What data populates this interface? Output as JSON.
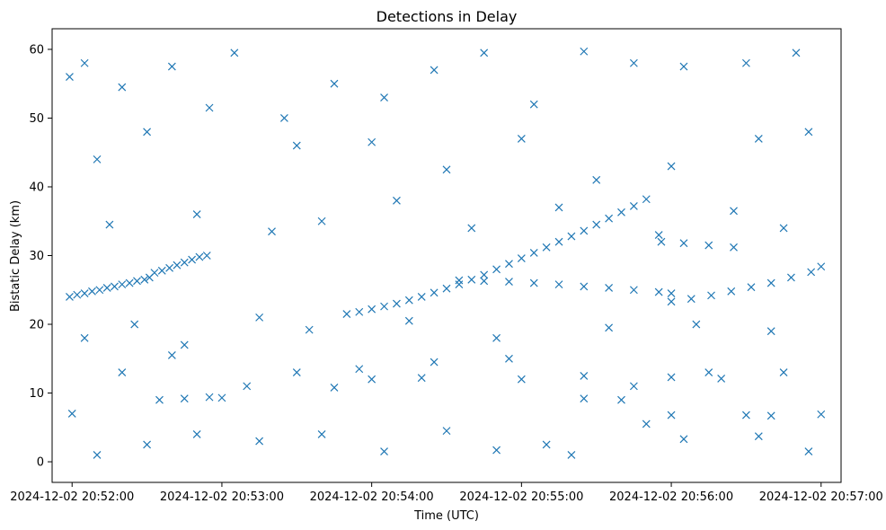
{
  "chart_data": {
    "type": "scatter",
    "title": "Detections in Delay",
    "xlabel": "Time (UTC)",
    "ylabel": "Bistatic Delay (km)",
    "xlim": [
      "2024-12-02 20:51:52",
      "2024-12-02 20:57:08"
    ],
    "ylim": [
      -3,
      63
    ],
    "xticks": [
      {
        "value": "2024-12-02 20:52:00",
        "label": "2024-12-02 20:52:00"
      },
      {
        "value": "2024-12-02 20:53:00",
        "label": "2024-12-02 20:53:00"
      },
      {
        "value": "2024-12-02 20:54:00",
        "label": "2024-12-02 20:54:00"
      },
      {
        "value": "2024-12-02 20:55:00",
        "label": "2024-12-02 20:55:00"
      },
      {
        "value": "2024-12-02 20:56:00",
        "label": "2024-12-02 20:56:00"
      },
      {
        "value": "2024-12-02 20:57:00",
        "label": "2024-12-02 20:57:00"
      }
    ],
    "yticks": [
      {
        "value": 0,
        "label": "0"
      },
      {
        "value": 10,
        "label": "10"
      },
      {
        "value": 20,
        "label": "20"
      },
      {
        "value": 30,
        "label": "30"
      },
      {
        "value": 40,
        "label": "40"
      },
      {
        "value": 50,
        "label": "50"
      },
      {
        "value": 60,
        "label": "60"
      }
    ],
    "marker": "x",
    "color": "#1f77b4",
    "grid": false,
    "series": [
      {
        "points": [
          [
            "2024-12-02 20:51:59",
            24.0
          ],
          [
            "2024-12-02 20:52:02",
            24.3
          ],
          [
            "2024-12-02 20:52:05",
            24.5
          ],
          [
            "2024-12-02 20:52:08",
            24.8
          ],
          [
            "2024-12-02 20:52:11",
            25.0
          ],
          [
            "2024-12-02 20:52:14",
            25.3
          ],
          [
            "2024-12-02 20:52:17",
            25.5
          ],
          [
            "2024-12-02 20:52:20",
            25.8
          ],
          [
            "2024-12-02 20:52:23",
            26.0
          ],
          [
            "2024-12-02 20:52:26",
            26.3
          ],
          [
            "2024-12-02 20:52:29",
            26.5
          ],
          [
            "2024-12-02 20:52:31",
            26.8
          ],
          [
            "2024-12-02 20:52:33",
            27.5
          ],
          [
            "2024-12-02 20:52:36",
            27.8
          ],
          [
            "2024-12-02 20:52:39",
            28.2
          ],
          [
            "2024-12-02 20:52:42",
            28.6
          ],
          [
            "2024-12-02 20:52:45",
            29.0
          ],
          [
            "2024-12-02 20:52:48",
            29.4
          ],
          [
            "2024-12-02 20:52:51",
            29.8
          ],
          [
            "2024-12-02 20:52:54",
            30.0
          ],
          [
            "2024-12-02 20:53:50",
            21.5
          ],
          [
            "2024-12-02 20:53:55",
            21.8
          ],
          [
            "2024-12-02 20:54:00",
            22.2
          ],
          [
            "2024-12-02 20:54:05",
            22.6
          ],
          [
            "2024-12-02 20:54:10",
            23.0
          ],
          [
            "2024-12-02 20:54:15",
            23.5
          ],
          [
            "2024-12-02 20:54:20",
            24.0
          ],
          [
            "2024-12-02 20:54:25",
            24.6
          ],
          [
            "2024-12-02 20:54:30",
            25.2
          ],
          [
            "2024-12-02 20:54:35",
            25.8
          ],
          [
            "2024-12-02 20:54:40",
            26.5
          ],
          [
            "2024-12-02 20:54:45",
            27.2
          ],
          [
            "2024-12-02 20:54:50",
            28.0
          ],
          [
            "2024-12-02 20:54:55",
            28.8
          ],
          [
            "2024-12-02 20:55:00",
            29.6
          ],
          [
            "2024-12-02 20:55:05",
            30.4
          ],
          [
            "2024-12-02 20:55:10",
            31.2
          ],
          [
            "2024-12-02 20:55:15",
            32.0
          ],
          [
            "2024-12-02 20:55:20",
            32.8
          ],
          [
            "2024-12-02 20:55:25",
            33.6
          ],
          [
            "2024-12-02 20:55:30",
            34.5
          ],
          [
            "2024-12-02 20:55:35",
            35.4
          ],
          [
            "2024-12-02 20:55:40",
            36.3
          ],
          [
            "2024-12-02 20:55:45",
            37.2
          ],
          [
            "2024-12-02 20:55:50",
            38.2
          ],
          [
            "2024-12-02 20:54:35",
            26.4
          ],
          [
            "2024-12-02 20:54:45",
            26.3
          ],
          [
            "2024-12-02 20:54:55",
            26.2
          ],
          [
            "2024-12-02 20:55:05",
            26.0
          ],
          [
            "2024-12-02 20:55:15",
            25.8
          ],
          [
            "2024-12-02 20:55:25",
            25.5
          ],
          [
            "2024-12-02 20:55:35",
            25.3
          ],
          [
            "2024-12-02 20:55:45",
            25.0
          ],
          [
            "2024-12-02 20:55:55",
            24.7
          ],
          [
            "2024-12-02 20:56:00",
            24.5
          ],
          [
            "2024-12-02 20:56:00",
            23.3
          ],
          [
            "2024-12-02 20:56:08",
            23.7
          ],
          [
            "2024-12-02 20:56:16",
            24.2
          ],
          [
            "2024-12-02 20:56:24",
            24.8
          ],
          [
            "2024-12-02 20:56:32",
            25.4
          ],
          [
            "2024-12-02 20:56:40",
            26.0
          ],
          [
            "2024-12-02 20:56:48",
            26.8
          ],
          [
            "2024-12-02 20:56:56",
            27.6
          ],
          [
            "2024-12-02 20:57:00",
            28.4
          ],
          [
            "2024-12-02 20:55:56",
            32.0
          ],
          [
            "2024-12-02 20:56:05",
            31.8
          ],
          [
            "2024-12-02 20:56:15",
            31.5
          ],
          [
            "2024-12-02 20:56:25",
            31.2
          ],
          [
            "2024-12-02 20:52:35",
            9.0
          ],
          [
            "2024-12-02 20:52:45",
            9.2
          ],
          [
            "2024-12-02 20:52:55",
            9.4
          ],
          [
            "2024-12-02 20:53:00",
            9.3
          ],
          [
            "2024-12-02 20:53:45",
            10.8
          ],
          [
            "2024-12-02 20:54:00",
            12.0
          ],
          [
            "2024-12-02 20:54:20",
            12.2
          ],
          [
            "2024-12-02 20:55:00",
            12.0
          ],
          [
            "2024-12-02 20:55:25",
            9.2
          ],
          [
            "2024-12-02 20:55:40",
            9.0
          ],
          [
            "2024-12-02 20:56:00",
            12.3
          ],
          [
            "2024-12-02 20:56:20",
            12.1
          ],
          [
            "2024-12-02 20:56:00",
            6.8
          ],
          [
            "2024-12-02 20:56:30",
            6.8
          ],
          [
            "2024-12-02 20:56:40",
            6.7
          ],
          [
            "2024-12-02 20:57:00",
            6.9
          ],
          [
            "2024-12-02 20:51:59",
            56.0
          ],
          [
            "2024-12-02 20:52:05",
            58.0
          ],
          [
            "2024-12-02 20:52:20",
            54.5
          ],
          [
            "2024-12-02 20:52:40",
            57.5
          ],
          [
            "2024-12-02 20:53:05",
            59.5
          ],
          [
            "2024-12-02 20:53:25",
            50.0
          ],
          [
            "2024-12-02 20:53:45",
            55.0
          ],
          [
            "2024-12-02 20:54:05",
            53.0
          ],
          [
            "2024-12-02 20:54:25",
            57.0
          ],
          [
            "2024-12-02 20:54:45",
            59.5
          ],
          [
            "2024-12-02 20:55:05",
            52.0
          ],
          [
            "2024-12-02 20:55:25",
            59.7
          ],
          [
            "2024-12-02 20:55:45",
            58.0
          ],
          [
            "2024-12-02 20:56:05",
            57.5
          ],
          [
            "2024-12-02 20:56:30",
            58.0
          ],
          [
            "2024-12-02 20:56:50",
            59.5
          ],
          [
            "2024-12-02 20:52:10",
            44.0
          ],
          [
            "2024-12-02 20:52:30",
            48.0
          ],
          [
            "2024-12-02 20:52:55",
            51.5
          ],
          [
            "2024-12-02 20:53:30",
            46.0
          ],
          [
            "2024-12-02 20:54:00",
            46.5
          ],
          [
            "2024-12-02 20:54:30",
            42.5
          ],
          [
            "2024-12-02 20:55:00",
            47.0
          ],
          [
            "2024-12-02 20:55:30",
            41.0
          ],
          [
            "2024-12-02 20:56:00",
            43.0
          ],
          [
            "2024-12-02 20:56:35",
            47.0
          ],
          [
            "2024-12-02 20:56:55",
            48.0
          ],
          [
            "2024-12-02 20:52:15",
            34.5
          ],
          [
            "2024-12-02 20:52:50",
            36.0
          ],
          [
            "2024-12-02 20:53:20",
            33.5
          ],
          [
            "2024-12-02 20:53:40",
            35.0
          ],
          [
            "2024-12-02 20:54:10",
            38.0
          ],
          [
            "2024-12-02 20:54:40",
            34.0
          ],
          [
            "2024-12-02 20:55:15",
            37.0
          ],
          [
            "2024-12-02 20:55:55",
            33.0
          ],
          [
            "2024-12-02 20:56:25",
            36.5
          ],
          [
            "2024-12-02 20:56:45",
            34.0
          ],
          [
            "2024-12-02 20:52:05",
            18.0
          ],
          [
            "2024-12-02 20:52:25",
            20.0
          ],
          [
            "2024-12-02 20:52:45",
            17.0
          ],
          [
            "2024-12-02 20:53:15",
            21.0
          ],
          [
            "2024-12-02 20:53:35",
            19.2
          ],
          [
            "2024-12-02 20:54:15",
            20.5
          ],
          [
            "2024-12-02 20:54:50",
            18.0
          ],
          [
            "2024-12-02 20:55:35",
            19.5
          ],
          [
            "2024-12-02 20:56:10",
            20.0
          ],
          [
            "2024-12-02 20:56:40",
            19.0
          ],
          [
            "2024-12-02 20:52:00",
            7.0
          ],
          [
            "2024-12-02 20:52:10",
            1.0
          ],
          [
            "2024-12-02 20:52:30",
            2.5
          ],
          [
            "2024-12-02 20:52:50",
            4.0
          ],
          [
            "2024-12-02 20:53:15",
            3.0
          ],
          [
            "2024-12-02 20:53:40",
            4.0
          ],
          [
            "2024-12-02 20:54:05",
            1.5
          ],
          [
            "2024-12-02 20:54:30",
            4.5
          ],
          [
            "2024-12-02 20:54:50",
            1.7
          ],
          [
            "2024-12-02 20:55:10",
            2.5
          ],
          [
            "2024-12-02 20:55:20",
            1.0
          ],
          [
            "2024-12-02 20:55:50",
            5.5
          ],
          [
            "2024-12-02 20:56:05",
            3.3
          ],
          [
            "2024-12-02 20:56:35",
            3.7
          ],
          [
            "2024-12-02 20:56:55",
            1.5
          ],
          [
            "2024-12-02 20:52:20",
            13.0
          ],
          [
            "2024-12-02 20:52:40",
            15.5
          ],
          [
            "2024-12-02 20:53:10",
            11.0
          ],
          [
            "2024-12-02 20:53:30",
            13.0
          ],
          [
            "2024-12-02 20:53:55",
            13.5
          ],
          [
            "2024-12-02 20:54:25",
            14.5
          ],
          [
            "2024-12-02 20:54:55",
            15.0
          ],
          [
            "2024-12-02 20:55:25",
            12.5
          ],
          [
            "2024-12-02 20:55:45",
            11.0
          ],
          [
            "2024-12-02 20:56:15",
            13.0
          ],
          [
            "2024-12-02 20:56:45",
            13.0
          ]
        ]
      }
    ]
  }
}
